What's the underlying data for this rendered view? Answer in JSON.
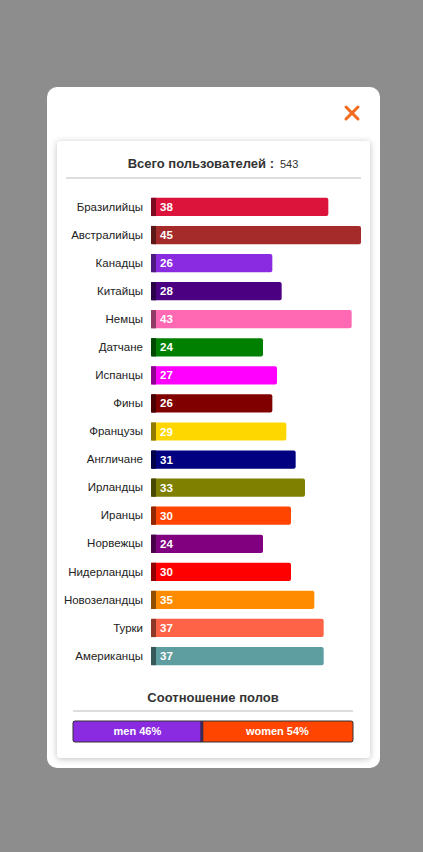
{
  "chart_data": [
    {
      "type": "bar",
      "orientation": "horizontal",
      "title": "Всего пользователей :",
      "total": 543,
      "categories": [
        "Бразилийцы",
        "Австралийцы",
        "Канадцы",
        "Китайцы",
        "Немцы",
        "Датчане",
        "Испанцы",
        "Фины",
        "Французы",
        "Англичане",
        "Ирландцы",
        "Иранцы",
        "Норвежцы",
        "Нидерландцы",
        "Новозеландцы",
        "Турки",
        "Американцы"
      ],
      "values": [
        38,
        45,
        26,
        28,
        43,
        24,
        27,
        26,
        29,
        31,
        33,
        30,
        24,
        30,
        35,
        37,
        37
      ],
      "colors": [
        "#dc143c",
        "#a52a2a",
        "#8a2be2",
        "#4b0082",
        "#ff69b4",
        "#008000",
        "#ff00ff",
        "#800000",
        "#ffd700",
        "#000080",
        "#808000",
        "#ff4500",
        "#800080",
        "#ff0000",
        "#ff8c00",
        "#ff6347",
        "#5f9ea0"
      ],
      "xlim": [
        0,
        45
      ],
      "data_labels": true,
      "tick_labels": false,
      "grid": false
    },
    {
      "type": "bar",
      "orientation": "horizontal",
      "stacked": true,
      "title": "Соотношение полов",
      "categories": [
        null
      ],
      "series": [
        {
          "name": "men",
          "color": "#8a2be2",
          "values": [
            46
          ],
          "value_labels": [
            "men 46%"
          ]
        },
        {
          "name": "women",
          "color": "#ff4500",
          "values": [
            54
          ],
          "value_labels": [
            "women 54%"
          ]
        }
      ],
      "xlim": [
        0,
        100
      ],
      "data_labels": true,
      "tick_labels": false,
      "grid": false
    }
  ]
}
